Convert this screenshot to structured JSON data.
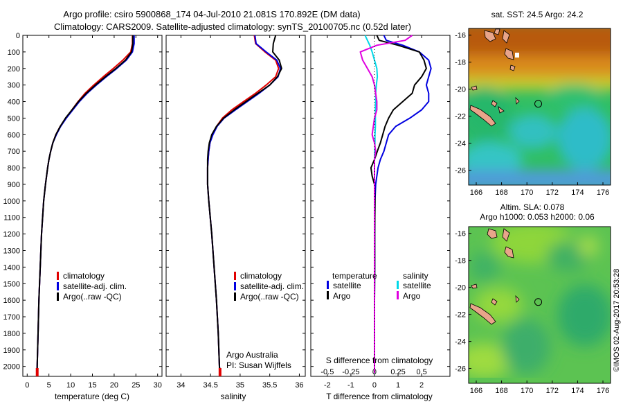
{
  "header": {
    "line1": "Argo profile: csiro 5900868_174 04-Jul-2010 21.081S 170.892E (DM data)",
    "line2": "Climatology: CARS2009. Satellite-adjusted climatology: synTS_20100705.nc (0.52d later)"
  },
  "colors": {
    "climatology": "#e00000",
    "satellite": "#0000e0",
    "argo": "#000000",
    "argo_sal": "#e000e0",
    "sat_sal": "#00d8e8"
  },
  "chart_data": [
    {
      "type": "line",
      "panel": "temperature",
      "xlabel": "temperature (deg C)",
      "xlim": [
        -1,
        31
      ],
      "ylim": [
        2060,
        0
      ],
      "x_ticks": [
        "0",
        "5",
        "10",
        "15",
        "20",
        "25",
        "30"
      ],
      "y_ticks": [
        "0",
        "100",
        "200",
        "300",
        "400",
        "500",
        "600",
        "700",
        "800",
        "900",
        "1000",
        "1100",
        "1200",
        "1300",
        "1400",
        "1500",
        "1600",
        "1700",
        "1800",
        "1900",
        "2000"
      ],
      "depth": [
        0,
        50,
        100,
        150,
        200,
        250,
        300,
        350,
        400,
        450,
        500,
        550,
        600,
        650,
        700,
        750,
        800,
        900,
        1000,
        1200,
        1400,
        1600,
        1800,
        2000,
        2040
      ],
      "series": [
        {
          "name": "climatology",
          "color": "climatology",
          "x": [
            24.2,
            24.2,
            23.8,
            22.0,
            19.8,
            17.5,
            15.3,
            13.3,
            11.7,
            10.3,
            8.9,
            7.6,
            6.6,
            5.9,
            5.4,
            5.0,
            4.7,
            4.2,
            3.8,
            3.3,
            3.0,
            2.7,
            2.5,
            2.3,
            2.3
          ]
        },
        {
          "name": "satellite-adj. clim.",
          "color": "satellite",
          "x": [
            24.6,
            24.6,
            24.2,
            22.8,
            20.6,
            18.2,
            15.9,
            13.8,
            12.0,
            10.5,
            9.0,
            7.7,
            6.7,
            5.9,
            5.4,
            5.0,
            4.7,
            4.2,
            3.8,
            3.3,
            3.0,
            2.7,
            2.5,
            2.3,
            2.3
          ]
        },
        {
          "name": "Argo(..raw -QC)",
          "color": "argo",
          "x": [
            24.3,
            24.3,
            24.0,
            22.6,
            20.4,
            18.0,
            15.7,
            13.6,
            11.8,
            10.3,
            8.8,
            7.6,
            6.6,
            5.9,
            5.4,
            5.0,
            4.7,
            4.2,
            3.8,
            3.3,
            3.0,
            2.7,
            2.5,
            2.3,
            2.3
          ]
        }
      ],
      "legend": [
        "climatology",
        "satellite-adj. clim.",
        "Argo(..raw -QC)"
      ]
    },
    {
      "type": "line",
      "panel": "salinity",
      "xlabel": "salinity",
      "xlim": [
        33.75,
        36.1
      ],
      "ylim": [
        2060,
        0
      ],
      "x_ticks": [
        "34",
        "34.5",
        "35",
        "35.5",
        "36"
      ],
      "depth": [
        0,
        50,
        100,
        150,
        200,
        250,
        300,
        350,
        400,
        450,
        500,
        550,
        600,
        650,
        700,
        750,
        800,
        900,
        1000,
        1200,
        1400,
        1600,
        1800,
        2000,
        2040
      ],
      "series": [
        {
          "name": "climatology",
          "color": "climatology",
          "x": [
            35.24,
            35.26,
            35.42,
            35.6,
            35.65,
            35.6,
            35.44,
            35.26,
            35.06,
            34.86,
            34.7,
            34.6,
            34.53,
            34.49,
            34.47,
            34.46,
            34.45,
            34.45,
            34.47,
            34.52,
            34.56,
            34.6,
            34.63,
            34.65,
            34.66
          ]
        },
        {
          "name": "satellite-adj. clim.",
          "color": "satellite",
          "x": [
            35.25,
            35.27,
            35.44,
            35.62,
            35.68,
            35.64,
            35.5,
            35.32,
            35.12,
            34.92,
            34.73,
            34.61,
            34.54,
            34.49,
            34.47,
            34.46,
            34.45,
            34.45,
            34.47,
            34.52,
            34.56,
            34.6,
            34.63,
            34.65,
            34.66
          ]
        },
        {
          "name": "Argo(..raw -QC)",
          "color": "argo",
          "x": [
            35.6,
            35.56,
            35.55,
            35.66,
            35.7,
            35.63,
            35.5,
            35.3,
            35.1,
            34.9,
            34.72,
            34.6,
            34.52,
            34.48,
            34.46,
            34.45,
            34.45,
            34.45,
            34.47,
            34.52,
            34.56,
            34.6,
            34.63,
            34.65,
            34.66
          ]
        }
      ],
      "legend": [
        "climatology",
        "satellite-adj. clim.",
        "Argo(..raw -QC)"
      ],
      "annotation": [
        "Argo Australia",
        "PI: Susan Wijffels"
      ]
    },
    {
      "type": "line",
      "panel": "difference",
      "xlabel": "T difference from climatology",
      "xlabel_top": "S difference from climatology",
      "xlim": [
        -2.7,
        3.2
      ],
      "ylim": [
        2060,
        0
      ],
      "x_ticks_T": [
        "-2",
        "-1",
        "0",
        "1",
        "2"
      ],
      "x_ticks_S": [
        "-0.5",
        "-0.25",
        "0",
        "0.25",
        "0.5"
      ],
      "s_scale": 4,
      "depth": [
        0,
        30,
        60,
        100,
        150,
        200,
        250,
        300,
        350,
        400,
        450,
        500,
        550,
        600,
        650,
        700,
        750,
        800,
        850,
        900,
        1000,
        1200,
        1400,
        1600,
        1800,
        2000,
        2040
      ],
      "series": [
        {
          "name": "temperature satellite",
          "color": "satellite",
          "x": [
            0.4,
            0.5,
            1.2,
            1.9,
            2.3,
            2.4,
            2.3,
            2.2,
            2.3,
            2.3,
            2.0,
            1.5,
            0.9,
            0.6,
            0.5,
            0.4,
            0.25,
            0.15,
            0.1,
            0.05,
            0.02,
            0.01,
            0.01,
            0.0,
            0.0,
            0.0,
            0.0
          ]
        },
        {
          "name": "temperature Argo",
          "color": "argo",
          "x": [
            0.1,
            0.2,
            1.0,
            1.9,
            2.1,
            2.2,
            2.0,
            1.7,
            1.6,
            1.2,
            0.8,
            0.6,
            0.45,
            0.35,
            0.25,
            0.12,
            0.0,
            -0.15,
            -0.1,
            0.0,
            0.02,
            0.01,
            0.01,
            0.0,
            0.0,
            0.0,
            0.0
          ]
        },
        {
          "name": "salinity satellite",
          "color": "sat_sal",
          "x": [
            -0.4,
            -0.3,
            -0.2,
            -0.1,
            0.0,
            0.1,
            0.12,
            0.08,
            0.05,
            0.05,
            0.04,
            0.04,
            0.04,
            0.02,
            0.02,
            0.01,
            0.0,
            0.0,
            0.0,
            0.0,
            0.0,
            0.0,
            0.0,
            0.0,
            0.0,
            0.0,
            0.0
          ]
        },
        {
          "name": "salinity Argo",
          "color": "argo_sal",
          "x": [
            1.6,
            1.3,
            0.1,
            -0.6,
            -0.5,
            -0.3,
            -0.1,
            0.0,
            0.05,
            0.1,
            0.1,
            0.0,
            -0.05,
            -0.1,
            0.0,
            0.05,
            0.0,
            0.0,
            0.0,
            0.0,
            0.0,
            0.0,
            0.0,
            0.0,
            0.0,
            0.0,
            0.0
          ]
        }
      ],
      "legend": {
        "temperature_title": "temperature",
        "salinity_title": "salinity",
        "satellite": "satellite",
        "argo": "Argo"
      }
    }
  ],
  "maps": {
    "sst": {
      "title": "sat. SST: 24.5 Argo: 24.2",
      "x_ticks": [
        "166",
        "168",
        "170",
        "172",
        "174",
        "176"
      ],
      "y_ticks": [
        "-16",
        "-18",
        "-20",
        "-22",
        "-24",
        "-26"
      ]
    },
    "sla": {
      "title1": "Altim. SLA: 0.078",
      "title2": "Argo h1000: 0.053 h2000: 0.06",
      "x_ticks": [
        "166",
        "168",
        "170",
        "172",
        "174",
        "176"
      ],
      "y_ticks": [
        "-16",
        "-18",
        "-20",
        "-22",
        "-24",
        "-26"
      ]
    },
    "argo_position": {
      "lon": 170.892,
      "lat": -21.081
    },
    "lon_range": [
      165.4,
      176.6
    ],
    "lat_range": [
      -27.1,
      -15.5
    ]
  },
  "credit": "©IMOS 02-Aug-2017 20:53:28"
}
